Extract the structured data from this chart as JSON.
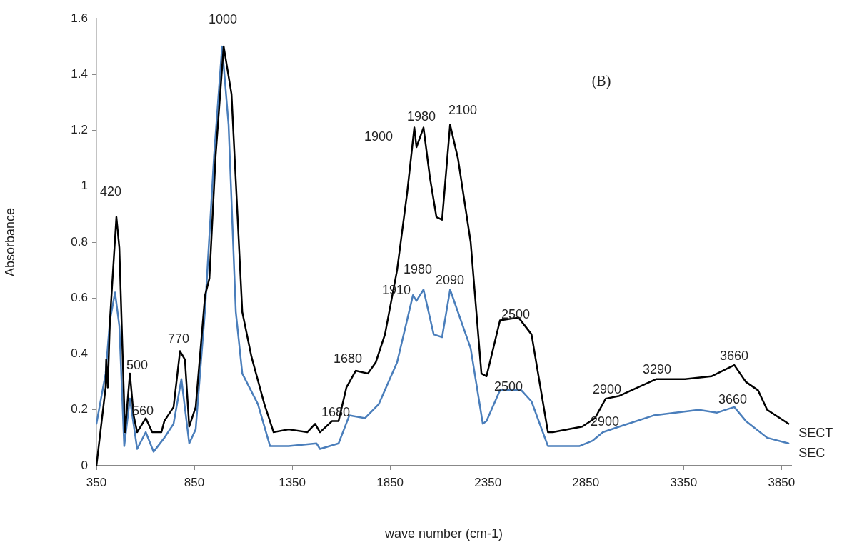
{
  "chart_data": {
    "type": "line",
    "xlabel": "wave number (cm-1)",
    "ylabel": "Absorbance",
    "xlim": [
      350,
      3900
    ],
    "xticks": [
      350,
      850,
      1350,
      1850,
      2350,
      2850,
      3350,
      3850
    ],
    "ylim": [
      0,
      1.6
    ],
    "yticks": [
      0,
      0.2,
      0.4,
      0.6,
      0.8,
      1,
      1.2,
      1.4,
      1.6
    ],
    "grid": false,
    "legend": false,
    "marker": "none",
    "line_style": "solid",
    "series": [
      {
        "name": "SECT",
        "color": "#000000",
        "x": [
          350,
          397,
          400,
          408,
          419,
          452,
          467,
          496,
          521,
          540,
          558,
          602,
          635,
          682,
          697,
          744,
          777,
          802,
          824,
          857,
          905,
          927,
          959,
          1000,
          1040,
          1095,
          1142,
          1208,
          1255,
          1332,
          1427,
          1467,
          1492,
          1554,
          1587,
          1627,
          1675,
          1737,
          1777,
          1824,
          1886,
          1938,
          1974,
          1985,
          2021,
          2054,
          2087,
          2116,
          2157,
          2197,
          2262,
          2317,
          2343,
          2412,
          2507,
          2573,
          2657,
          2682,
          2832,
          2897,
          2952,
          3022,
          3116,
          3211,
          3357,
          3492,
          3609,
          3668,
          3730,
          3777,
          3886
        ],
        "values": [
          0,
          0.28,
          0.38,
          0.28,
          0.52,
          0.89,
          0.78,
          0.12,
          0.33,
          0.18,
          0.12,
          0.17,
          0.12,
          0.12,
          0.16,
          0.21,
          0.41,
          0.38,
          0.14,
          0.21,
          0.61,
          0.67,
          1.11,
          1.5,
          1.33,
          0.55,
          0.39,
          0.22,
          0.12,
          0.13,
          0.12,
          0.15,
          0.12,
          0.16,
          0.16,
          0.28,
          0.34,
          0.33,
          0.37,
          0.47,
          0.7,
          0.98,
          1.21,
          1.14,
          1.21,
          1.03,
          0.89,
          0.88,
          1.22,
          1.1,
          0.8,
          0.33,
          0.32,
          0.52,
          0.53,
          0.47,
          0.12,
          0.12,
          0.14,
          0.17,
          0.24,
          0.25,
          0.28,
          0.31,
          0.31,
          0.32,
          0.36,
          0.3,
          0.27,
          0.2,
          0.15
        ]
      },
      {
        "name": "SEC",
        "color": "#4a7ebb",
        "x": [
          350,
          397,
          419,
          445,
          467,
          492,
          521,
          558,
          602,
          642,
          697,
          744,
          784,
          824,
          857,
          905,
          951,
          992,
          1025,
          1062,
          1095,
          1175,
          1237,
          1332,
          1474,
          1492,
          1587,
          1642,
          1722,
          1792,
          1886,
          1967,
          1985,
          2021,
          2073,
          2116,
          2157,
          2262,
          2324,
          2343,
          2412,
          2521,
          2573,
          2657,
          2817,
          2886,
          2938,
          3022,
          3197,
          3427,
          3521,
          3609,
          3668,
          3777,
          3886
        ],
        "values": [
          0.15,
          0.33,
          0.52,
          0.62,
          0.5,
          0.07,
          0.24,
          0.06,
          0.12,
          0.05,
          0.1,
          0.15,
          0.31,
          0.08,
          0.13,
          0.56,
          1.11,
          1.5,
          1.22,
          0.55,
          0.33,
          0.22,
          0.07,
          0.07,
          0.08,
          0.06,
          0.08,
          0.18,
          0.17,
          0.22,
          0.37,
          0.61,
          0.59,
          0.63,
          0.47,
          0.46,
          0.63,
          0.42,
          0.15,
          0.16,
          0.27,
          0.27,
          0.23,
          0.07,
          0.07,
          0.09,
          0.12,
          0.14,
          0.18,
          0.2,
          0.19,
          0.21,
          0.16,
          0.1,
          0.08
        ]
      }
    ],
    "annotations": [
      "(B)",
      "420",
      "500",
      "560",
      "770",
      "1000",
      "1900",
      "1980",
      "2100",
      "1910",
      "1980",
      "2090",
      "1680",
      "1680",
      "2500",
      "2500",
      "2900",
      "2900",
      "3290",
      "3660",
      "3660"
    ]
  }
}
